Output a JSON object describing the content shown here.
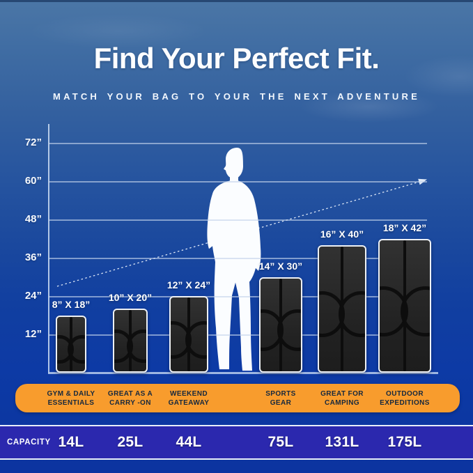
{
  "header": {
    "title": "Find Your Perfect Fit.",
    "subtitle": "MATCH YOUR BAG TO YOUR THE NEXT ADVENTURE"
  },
  "chart_data": {
    "type": "bar",
    "title": "Find Your Perfect Fit.",
    "subtitle": "MATCH YOUR BAG TO YOUR THE NEXT ADVENTURE",
    "unit": "inches",
    "grid": true,
    "legend_position": "none",
    "y_ticks": [
      {
        "label": "72”",
        "value": 72
      },
      {
        "label": "60”",
        "value": 60
      },
      {
        "label": "48”",
        "value": 48
      },
      {
        "label": "36”",
        "value": 36
      },
      {
        "label": "24”",
        "value": 24
      },
      {
        "label": "12”",
        "value": 12
      }
    ],
    "ylim": [
      0,
      78
    ],
    "bags": [
      {
        "dims_label": "8” X 18”",
        "width_in": 8,
        "height_in": 18
      },
      {
        "dims_label": "10” X 20”",
        "width_in": 10,
        "height_in": 20
      },
      {
        "dims_label": "12” X 24”",
        "width_in": 12,
        "height_in": 24
      },
      {
        "dims_label": "14” X 30”",
        "width_in": 14,
        "height_in": 30
      },
      {
        "dims_label": "16” X 40”",
        "width_in": 16,
        "height_in": 40
      },
      {
        "dims_label": "18” X 42”",
        "width_in": 18,
        "height_in": 42
      }
    ]
  },
  "banner_categories": [
    "GYM & DAILY\nESSENTIALS",
    "GREAT AS A\nCARRY -ON",
    "WEEKEND\nGATEAWAY",
    "SPORTS\nGEAR",
    "GREAT FOR\nCAMPING",
    "OUTDOOR\nEXPEDITIONS"
  ],
  "capacity_row": {
    "label": "CAPACITY",
    "values": [
      "14L",
      "25L",
      "44L",
      "75L",
      "131L",
      "175L"
    ]
  },
  "icons": {
    "silhouette": "standing-person-silhouette",
    "arrow": "upward-trend-arrow"
  },
  "colors": {
    "banner_orange": "#f89c2d",
    "capacity_bar_blue": "#2b28ae",
    "background_top": "#4b76a6",
    "background_bottom": "#0c34a0",
    "bag_black": "#262626",
    "text_white": "#ffffff",
    "banner_text_navy": "#15283e"
  }
}
